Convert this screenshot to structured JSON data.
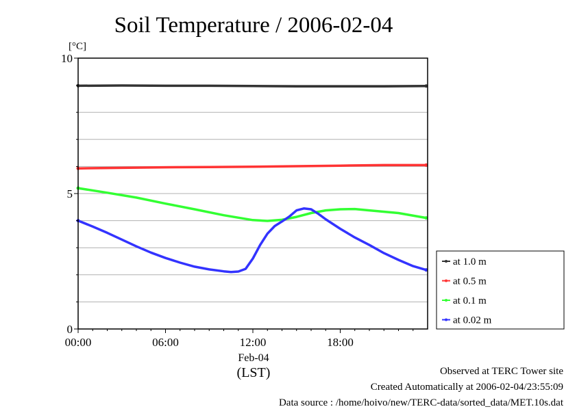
{
  "chart_data": {
    "type": "line",
    "title": "Soil Temperature / 2006-02-04",
    "ylabel": "[°C]",
    "xlabel": "(LST)",
    "date_label": "Feb-04",
    "ylim": [
      0,
      10
    ],
    "yticks": [
      0,
      5,
      10
    ],
    "xlim": [
      0,
      24
    ],
    "xticks": [
      {
        "value": 0,
        "label": "00:00"
      },
      {
        "value": 6,
        "label": "06:00"
      },
      {
        "value": 12,
        "label": "12:00"
      },
      {
        "value": 18,
        "label": "18:00"
      }
    ],
    "grid": true,
    "legend_position": "right",
    "series": [
      {
        "name": "at 1.0 m",
        "color": "#333333",
        "x": [
          0,
          3,
          6,
          9,
          12,
          15,
          18,
          21,
          23.9
        ],
        "y": [
          8.98,
          8.99,
          8.98,
          8.98,
          8.97,
          8.96,
          8.96,
          8.96,
          8.97
        ]
      },
      {
        "name": "at 0.5 m",
        "color": "#ff3333",
        "x": [
          0,
          3,
          6,
          9,
          12,
          15,
          18,
          21,
          23.9
        ],
        "y": [
          5.93,
          5.95,
          5.97,
          5.98,
          5.99,
          6.01,
          6.03,
          6.05,
          6.05
        ]
      },
      {
        "name": "at 0.1 m",
        "color": "#33ff33",
        "x": [
          0,
          2,
          4,
          6,
          8,
          10,
          12,
          13,
          14,
          15,
          16,
          17,
          18,
          19,
          20,
          22,
          23.9
        ],
        "y": [
          5.2,
          5.03,
          4.85,
          4.63,
          4.42,
          4.2,
          4.02,
          3.99,
          4.03,
          4.14,
          4.28,
          4.38,
          4.42,
          4.43,
          4.38,
          4.28,
          4.1
        ]
      },
      {
        "name": "at 0.02 m",
        "color": "#3333ff",
        "x": [
          0,
          1,
          2,
          3,
          4,
          5,
          6,
          7,
          8,
          9,
          10,
          10.5,
          11,
          11.5,
          12,
          12.5,
          13,
          13.5,
          14,
          14.5,
          15,
          15.5,
          16,
          16.5,
          17,
          18,
          19,
          20,
          21,
          22,
          23,
          23.9
        ],
        "y": [
          4.0,
          3.78,
          3.55,
          3.3,
          3.05,
          2.82,
          2.62,
          2.45,
          2.3,
          2.2,
          2.13,
          2.1,
          2.12,
          2.22,
          2.6,
          3.1,
          3.52,
          3.8,
          3.97,
          4.15,
          4.38,
          4.45,
          4.42,
          4.25,
          4.05,
          3.7,
          3.38,
          3.1,
          2.8,
          2.55,
          2.32,
          2.18
        ]
      }
    ]
  },
  "footer": {
    "line1": "Observed at TERC Tower site",
    "line2": "Created Automatically at 2006-02-04/23:55:09",
    "line3": "Data source : /home/hoivo/new/TERC-data/sorted_data/MET.10s.dat"
  }
}
